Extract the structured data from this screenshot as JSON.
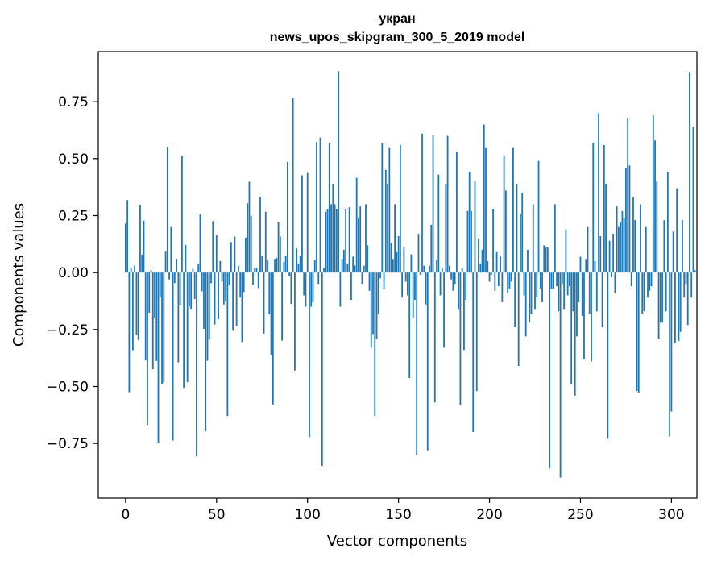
{
  "chart_data": {
    "type": "bar",
    "title": "укран",
    "subtitle": "news_upos_skipgram_300_5_2019 model",
    "xlabel": "Vector components",
    "ylabel": "Components values",
    "xlim": [
      -15,
      314
    ],
    "ylim": [
      -0.99,
      0.97
    ],
    "xticks": [
      0,
      50,
      100,
      150,
      200,
      250,
      300
    ],
    "yticks": [
      -0.75,
      -0.5,
      -0.25,
      0.0,
      0.25,
      0.5,
      0.75
    ],
    "ytick_labels": [
      "−0.75",
      "−0.50",
      "−0.25",
      "0.00",
      "0.25",
      "0.50",
      "0.75"
    ],
    "xtick_labels": [
      "0",
      "50",
      "100",
      "150",
      "200",
      "250",
      "300"
    ],
    "bar_color": "#1f77b4",
    "bar_width": 0.8,
    "values": [
      0.215,
      0.318,
      -0.525,
      0.02,
      -0.341,
      0.031,
      -0.274,
      -0.296,
      0.298,
      0.079,
      0.228,
      -0.386,
      -0.668,
      -0.176,
      0.01,
      -0.424,
      -0.198,
      -0.388,
      -0.746,
      -0.11,
      -0.491,
      -0.483,
      0.092,
      0.552,
      -0.03,
      0.2,
      -0.737,
      -0.046,
      0.061,
      -0.394,
      -0.145,
      0.514,
      -0.506,
      0.122,
      -0.481,
      -0.149,
      -0.159,
      0.017,
      -0.116,
      -0.807,
      0.04,
      0.255,
      -0.082,
      -0.247,
      -0.697,
      -0.387,
      -0.295,
      -0.047,
      0.226,
      -0.228,
      0.164,
      -0.205,
      0.051,
      -0.04,
      -0.14,
      -0.125,
      -0.63,
      -0.056,
      0.134,
      -0.255,
      0.158,
      -0.235,
      0.029,
      -0.11,
      -0.305,
      -0.085,
      0.153,
      0.304,
      0.399,
      0.249,
      -0.056,
      0.019,
      0.022,
      -0.068,
      0.332,
      0.072,
      -0.268,
      0.267,
      0.057,
      -0.183,
      -0.36,
      -0.579,
      0.06,
      0.065,
      0.22,
      0.158,
      -0.299,
      0.046,
      0.072,
      0.486,
      -0.016,
      -0.138,
      0.766,
      -0.43,
      0.106,
      0.04,
      0.074,
      0.427,
      -0.1,
      -0.15,
      0.437,
      -0.722,
      -0.15,
      -0.13,
      0.055,
      0.573,
      -0.05,
      0.593,
      -0.849,
      0.02,
      0.267,
      0.28,
      0.567,
      0.3,
      0.39,
      0.3,
      0.28,
      0.884,
      -0.15,
      0.06,
      0.1,
      0.28,
      0.04,
      0.287,
      -0.12,
      0.07,
      0.031,
      0.416,
      0.242,
      0.29,
      -0.05,
      0.03,
      0.3,
      0.12,
      -0.08,
      -0.33,
      -0.27,
      -0.63,
      -0.29,
      -0.18,
      -0.025,
      0.57,
      -0.07,
      0.45,
      0.39,
      0.55,
      0.13,
      0.06,
      0.3,
      0.09,
      0.16,
      0.56,
      -0.11,
      0.11,
      -0.04,
      -0.1,
      -0.463,
      0.08,
      -0.2,
      -0.12,
      -0.8,
      0.17,
      -0.01,
      0.61,
      0.03,
      -0.14,
      -0.78,
      0.03,
      0.21,
      0.602,
      -0.57,
      0.054,
      0.43,
      -0.1,
      0.02,
      -0.33,
      0.39,
      0.6,
      0.03,
      -0.03,
      -0.08,
      -0.05,
      0.53,
      -0.16,
      -0.58,
      0.02,
      -0.34,
      -0.12,
      0.27,
      0.44,
      0.27,
      -0.7,
      0.4,
      -0.52,
      0.15,
      0.04,
      0.1,
      0.65,
      0.55,
      0.05,
      -0.04,
      -0.01,
      0.28,
      -0.08,
      0.09,
      -0.06,
      0.07,
      -0.13,
      0.51,
      0.36,
      -0.09,
      -0.07,
      -0.04,
      0.55,
      -0.24,
      0.39,
      -0.41,
      0.26,
      0.35,
      -0.1,
      -0.28,
      0.1,
      -0.22,
      -0.18,
      0.3,
      -0.16,
      -0.11,
      0.49,
      -0.07,
      -0.13,
      0.12,
      0.11,
      0.11,
      -0.86,
      -0.07,
      -0.07,
      0.3,
      -0.06,
      -0.17,
      -0.9,
      -0.05,
      -0.16,
      0.19,
      -0.1,
      -0.06,
      -0.49,
      -0.17,
      -0.54,
      -0.28,
      -0.13,
      0.07,
      -0.19,
      -0.38,
      0.06,
      0.2,
      -0.18,
      -0.39,
      0.57,
      0.05,
      -0.17,
      0.7,
      0.16,
      -0.24,
      0.56,
      0.39,
      -0.73,
      0.14,
      -0.02,
      0.17,
      -0.09,
      0.29,
      0.2,
      0.22,
      0.27,
      0.24,
      0.46,
      0.68,
      0.47,
      -0.06,
      0.33,
      0.23,
      -0.52,
      -0.53,
      0.3,
      -0.18,
      -0.17,
      0.2,
      -0.11,
      -0.08,
      -0.06,
      0.69,
      0.58,
      0.4,
      -0.29,
      -0.22,
      -0.22,
      0.23,
      -0.17,
      0.44,
      -0.72,
      -0.61,
      0.18,
      -0.31,
      0.37,
      -0.3,
      -0.26,
      0.23,
      -0.11,
      -0.05,
      -0.23,
      0.88,
      -0.11,
      0.64,
      0.01
    ]
  }
}
